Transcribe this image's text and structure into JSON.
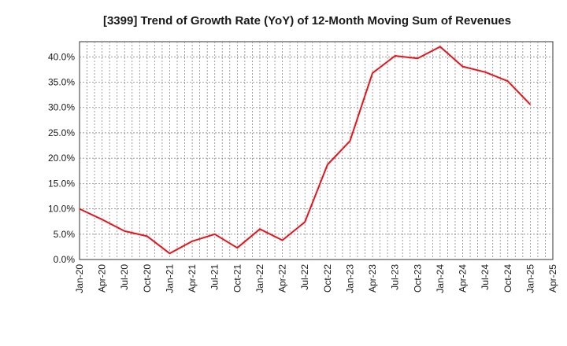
{
  "chart_data": {
    "type": "line",
    "title": "[3399]  Trend of Growth Rate (YoY) of 12-Month Moving Sum of Revenues",
    "xlabel": "",
    "ylabel": "",
    "x_ticks": [
      "Jan-20",
      "Apr-20",
      "Jul-20",
      "Oct-20",
      "Jan-21",
      "Apr-21",
      "Jul-21",
      "Oct-21",
      "Jan-22",
      "Apr-22",
      "Jul-22",
      "Oct-22",
      "Jan-23",
      "Apr-23",
      "Jul-23",
      "Oct-23",
      "Jan-24",
      "Apr-24",
      "Jul-24",
      "Oct-24",
      "Jan-25",
      "Apr-25"
    ],
    "y_ticks": [
      "0.0%",
      "5.0%",
      "10.0%",
      "15.0%",
      "20.0%",
      "25.0%",
      "30.0%",
      "35.0%",
      "40.0%"
    ],
    "ylim": [
      0,
      43
    ],
    "grid": true,
    "line_color": "#e8141c",
    "series": [
      {
        "name": "",
        "x": [
          "Jan-20",
          "Apr-20",
          "Jul-20",
          "Oct-20",
          "Jan-21",
          "Apr-21",
          "Jul-21",
          "Oct-21",
          "Jan-22",
          "Apr-22",
          "Jul-22",
          "Oct-22",
          "Jan-23",
          "Apr-23",
          "Jul-23",
          "Oct-23",
          "Jan-24",
          "Apr-24",
          "Jul-24",
          "Oct-24",
          "Jan-25"
        ],
        "values": [
          10.0,
          7.9,
          5.6,
          4.6,
          1.2,
          3.6,
          5.0,
          2.3,
          6.0,
          3.8,
          7.4,
          18.7,
          23.4,
          36.8,
          40.2,
          39.7,
          42.0,
          38.1,
          37.0,
          35.2,
          30.6
        ]
      }
    ]
  }
}
